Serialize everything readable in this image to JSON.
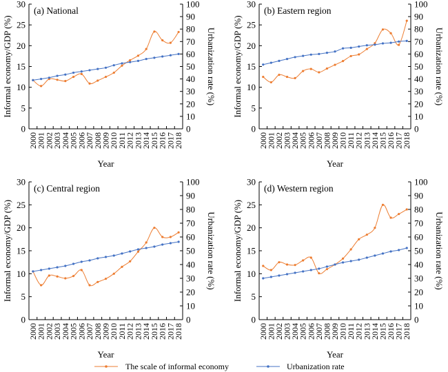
{
  "legend": {
    "informal_label": "The scale of informal economy",
    "urban_label": "Urbanization rate"
  },
  "colors": {
    "informal": "#ed7d31",
    "urban": "#4472c4",
    "axis": "#000000"
  },
  "chart_data": [
    {
      "type": "line",
      "title": "(a) National",
      "xlabel": "Year",
      "ylabel_left": "Informal economy/GDP (%)",
      "ylabel_right": "Urbanization rate (%)",
      "ylim_left": [
        0,
        30
      ],
      "yticks_left": [
        0,
        5,
        10,
        15,
        20,
        25,
        30
      ],
      "ylim_right": [
        0,
        100
      ],
      "yticks_right": [
        0,
        10,
        20,
        30,
        40,
        50,
        60,
        70,
        80,
        90,
        100
      ],
      "x": [
        "2000",
        "2001",
        "2002",
        "2003",
        "2004",
        "2005",
        "2006",
        "2007",
        "2008",
        "2009",
        "2010",
        "2011",
        "2012",
        "2013",
        "2014",
        "2015",
        "2016",
        "2017",
        "2018"
      ],
      "series": [
        {
          "name": "The scale of informal economy",
          "axis": "left",
          "values": [
            11.7,
            10.3,
            12.0,
            11.8,
            11.5,
            12.5,
            13.2,
            10.9,
            11.6,
            12.5,
            13.5,
            15.2,
            16.5,
            17.6,
            19.2,
            23.4,
            21.3,
            20.7,
            23.3
          ]
        },
        {
          "name": "Urbanization rate",
          "axis": "right",
          "values": [
            39.0,
            40.0,
            41.0,
            42.5,
            43.5,
            45.0,
            46.0,
            47.0,
            48.0,
            49.0,
            51.0,
            52.5,
            53.5,
            54.5,
            56.0,
            57.0,
            58.0,
            59.0,
            60.0
          ]
        }
      ]
    },
    {
      "type": "line",
      "title": "(b) Eastern region",
      "xlabel": "Year",
      "ylabel_left": "Informal economy/GDP (%)",
      "ylabel_right": "Urbanization rate (%)",
      "ylim_left": [
        0,
        30
      ],
      "yticks_left": [
        0,
        5,
        10,
        15,
        20,
        25,
        30
      ],
      "ylim_right": [
        0,
        100
      ],
      "yticks_right": [
        0,
        10,
        20,
        30,
        40,
        50,
        60,
        70,
        80,
        90,
        100
      ],
      "x": [
        "2000",
        "2001",
        "2002",
        "2003",
        "2004",
        "2005",
        "2006",
        "2007",
        "2008",
        "2009",
        "2010",
        "2011",
        "2012",
        "2013",
        "2014",
        "2015",
        "2016",
        "2017",
        "2018"
      ],
      "series": [
        {
          "name": "The scale of informal economy",
          "axis": "left",
          "values": [
            12.5,
            11.2,
            13.0,
            12.5,
            12.2,
            13.9,
            14.4,
            13.6,
            14.5,
            15.4,
            16.3,
            17.5,
            17.9,
            19.2,
            20.6,
            23.9,
            23.0,
            20.2,
            26.0
          ]
        },
        {
          "name": "Urbanization rate",
          "axis": "right",
          "values": [
            51.5,
            53.0,
            54.5,
            56.0,
            57.5,
            58.5,
            59.5,
            60.0,
            61.0,
            62.0,
            64.5,
            65.0,
            66.0,
            67.0,
            67.5,
            68.5,
            69.0,
            70.0,
            70.5
          ]
        }
      ]
    },
    {
      "type": "line",
      "title": "(c) Central region",
      "xlabel": "Year",
      "ylabel_left": "Informal economy/GDP (%)",
      "ylabel_right": "Urbanization rate (%)",
      "ylim_left": [
        0,
        30
      ],
      "yticks_left": [
        0,
        5,
        10,
        15,
        20,
        25,
        30
      ],
      "ylim_right": [
        0,
        100
      ],
      "yticks_right": [
        0,
        10,
        20,
        30,
        40,
        50,
        60,
        70,
        80,
        90,
        100
      ],
      "x": [
        "2000",
        "2001",
        "2002",
        "2003",
        "2004",
        "2005",
        "2006",
        "2007",
        "2008",
        "2009",
        "2010",
        "2011",
        "2012",
        "2013",
        "2014",
        "2015",
        "2016",
        "2017",
        "2018"
      ],
      "series": [
        {
          "name": "The scale of informal economy",
          "axis": "left",
          "values": [
            10.5,
            7.5,
            9.6,
            9.4,
            9.0,
            9.5,
            10.8,
            7.5,
            8.2,
            8.9,
            10.0,
            11.5,
            12.7,
            14.8,
            16.8,
            20.0,
            18.0,
            18.0,
            19.0
          ]
        },
        {
          "name": "Urbanization rate",
          "axis": "right",
          "values": [
            35.0,
            36.0,
            37.0,
            38.0,
            39.0,
            40.5,
            42.0,
            43.0,
            44.5,
            45.5,
            46.5,
            48.0,
            49.5,
            51.0,
            52.0,
            53.0,
            54.5,
            55.5,
            56.5
          ]
        }
      ]
    },
    {
      "type": "line",
      "title": "(d) Western region",
      "xlabel": "Year",
      "ylabel_left": "Informal economy/GDP (%)",
      "ylabel_right": "Urbanization rate (%)",
      "ylim_left": [
        0,
        30
      ],
      "yticks_left": [
        0,
        5,
        10,
        15,
        20,
        25,
        30
      ],
      "ylim_right": [
        0,
        100
      ],
      "yticks_right": [
        0,
        10,
        20,
        30,
        40,
        50,
        60,
        70,
        80,
        90,
        100
      ],
      "x": [
        "2000",
        "2001",
        "2002",
        "2003",
        "2004",
        "2005",
        "2006",
        "2007",
        "2008",
        "2009",
        "2010",
        "2011",
        "2012",
        "2013",
        "2014",
        "2015",
        "2016",
        "2017",
        "2018"
      ],
      "series": [
        {
          "name": "The scale of informal economy",
          "axis": "left",
          "values": [
            11.7,
            10.8,
            12.5,
            12.0,
            11.9,
            12.9,
            13.5,
            10.1,
            11.0,
            12.0,
            13.3,
            15.3,
            17.5,
            18.5,
            20.0,
            25.0,
            22.2,
            23.0,
            24.0
          ]
        },
        {
          "name": "Urbanization rate",
          "axis": "right",
          "values": [
            30.0,
            31.0,
            32.0,
            33.0,
            34.0,
            35.0,
            36.0,
            37.0,
            38.5,
            40.0,
            41.5,
            42.5,
            43.5,
            45.0,
            46.5,
            48.0,
            49.5,
            50.5,
            52.0
          ]
        }
      ]
    }
  ]
}
